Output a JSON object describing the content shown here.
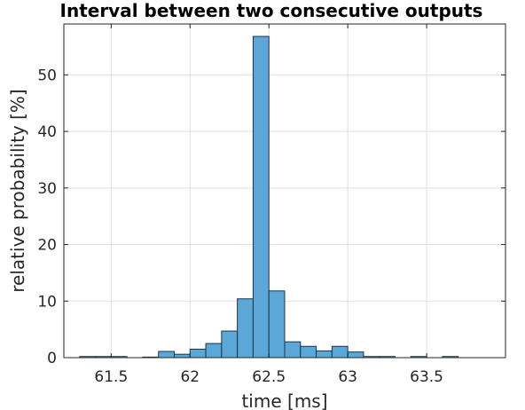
{
  "chart_data": {
    "type": "bar",
    "title": "Interval between two consecutive outputs",
    "xlabel": "time [ms]",
    "ylabel": "relative probability [%]",
    "xlim": [
      61.2,
      64.0
    ],
    "ylim": [
      0,
      59
    ],
    "xticks": [
      61.5,
      62,
      62.5,
      63,
      63.5
    ],
    "xtick_labels": [
      "61.5",
      "62",
      "62.5",
      "63",
      "63.5"
    ],
    "yticks": [
      0,
      10,
      20,
      30,
      40,
      50
    ],
    "ytick_labels": [
      "0",
      "10",
      "20",
      "30",
      "40",
      "50"
    ],
    "grid": true,
    "bar_color": "#5ba7d8",
    "bin_width": 0.1,
    "bins": [
      {
        "start": 61.3,
        "value": 0.2
      },
      {
        "start": 61.4,
        "value": 0.2
      },
      {
        "start": 61.5,
        "value": 0.2
      },
      {
        "start": 61.6,
        "value": 0.0
      },
      {
        "start": 61.7,
        "value": 0.1
      },
      {
        "start": 61.8,
        "value": 1.1
      },
      {
        "start": 61.9,
        "value": 0.6
      },
      {
        "start": 62.0,
        "value": 1.5
      },
      {
        "start": 62.1,
        "value": 2.5
      },
      {
        "start": 62.2,
        "value": 4.7
      },
      {
        "start": 62.3,
        "value": 10.4
      },
      {
        "start": 62.4,
        "value": 56.8
      },
      {
        "start": 62.5,
        "value": 11.8
      },
      {
        "start": 62.6,
        "value": 2.8
      },
      {
        "start": 62.7,
        "value": 2.0
      },
      {
        "start": 62.8,
        "value": 1.2
      },
      {
        "start": 62.9,
        "value": 2.0
      },
      {
        "start": 63.0,
        "value": 1.0
      },
      {
        "start": 63.1,
        "value": 0.2
      },
      {
        "start": 63.2,
        "value": 0.2
      },
      {
        "start": 63.3,
        "value": 0.0
      },
      {
        "start": 63.4,
        "value": 0.2
      },
      {
        "start": 63.5,
        "value": 0.0
      },
      {
        "start": 63.6,
        "value": 0.2
      }
    ]
  }
}
